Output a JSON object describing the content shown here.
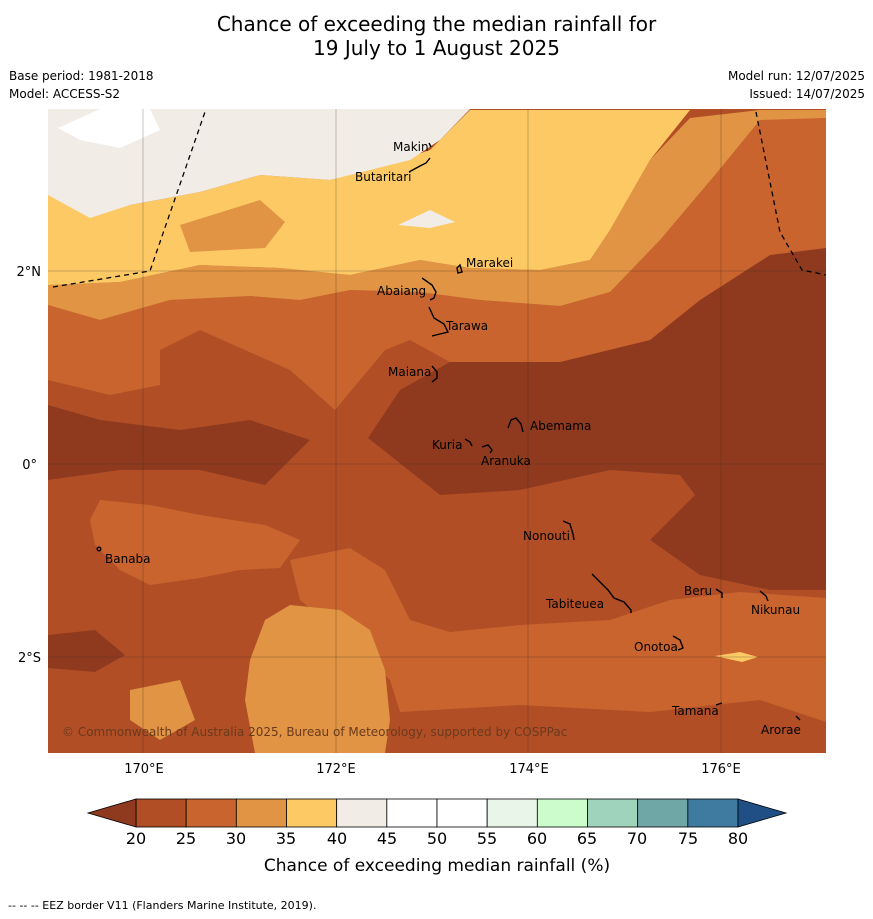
{
  "title_line1": "Chance of exceeding the median rainfall for",
  "title_line2": "19 July to 1 August 2025",
  "meta": {
    "base_period": "Base period: 1981-2018",
    "model": "Model: ACCESS-S2",
    "model_run": "Model run: 12/07/2025",
    "issued": "Issued: 14/07/2025"
  },
  "axes": {
    "x_ticks": [
      "170°E",
      "172°E",
      "174°E",
      "176°E"
    ],
    "y_ticks": [
      "2°N",
      "0°",
      "2°S"
    ]
  },
  "places": [
    "Makin",
    "Butaritari",
    "Marakei",
    "Abaiang",
    "Tarawa",
    "Maiana",
    "Abemama",
    "Kuria",
    "Aranuka",
    "Nonouti",
    "Banaba",
    "Beru",
    "Nikunau",
    "Tabiteuea",
    "Onotoa",
    "Tamana",
    "Arorae"
  ],
  "copyright": "© Commonwealth of Australia 2025, Bureau of Meteorology, supported by COSPPac",
  "colorbar": {
    "ticks": [
      "20",
      "25",
      "30",
      "35",
      "40",
      "45",
      "50",
      "55",
      "60",
      "65",
      "70",
      "75",
      "80"
    ],
    "colors": [
      "#b14e26",
      "#c9642f",
      "#e09444",
      "#fcc965",
      "#f1ece6",
      "#ffffff",
      "#ffffff",
      "#eaf5ea",
      "#ccfccc",
      "#9fd3bb",
      "#6fa7a7",
      "#3f7ba0"
    ],
    "under_color": "#8f3a1f",
    "over_color": "#1f4f85",
    "label": "Chance of exceeding median rainfall (%)"
  },
  "footnote": "--  --  -- EEZ border V11 (Flanders Marine Institute, 2019)."
}
